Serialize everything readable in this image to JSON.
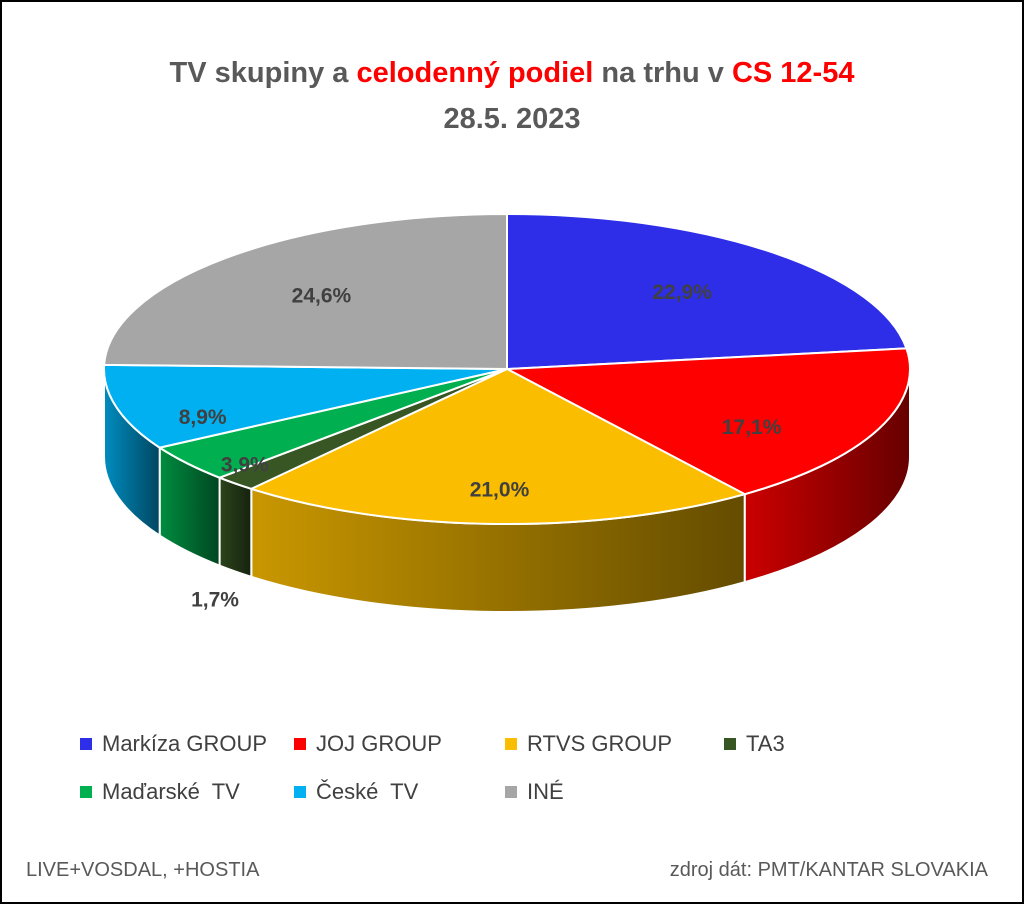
{
  "title": {
    "part1": "TV skupiny a ",
    "part2": "celodenný podiel",
    "part3": " na trhu v ",
    "part4": "CS 12-54",
    "line2": "28.5. 2023"
  },
  "footer": {
    "left": "LIVE+VOSDAL, +HOSTIA",
    "right": "zdroj dát: PMT/KANTAR SLOVAKIA"
  },
  "chart_data": {
    "type": "pie",
    "style": "3d",
    "title": "TV skupiny a celodenný podiel na trhu v CS 12-54 28.5. 2023",
    "legend_position": "bottom",
    "slices": [
      {
        "name": "Markíza GROUP",
        "value": 22.9,
        "label": "22,9%",
        "color": "#2e2ee8"
      },
      {
        "name": "JOJ GROUP",
        "value": 17.1,
        "label": "17,1%",
        "color": "#ff0000"
      },
      {
        "name": "RTVS GROUP",
        "value": 21.0,
        "label": "21,0%",
        "color": "#fbbd00"
      },
      {
        "name": "TA3",
        "value": 1.7,
        "label": "1,7%",
        "color": "#375623"
      },
      {
        "name": "Maďarské  TV",
        "value": 3.9,
        "label": "3,9%",
        "color": "#00b050"
      },
      {
        "name": "České  TV",
        "value": 8.9,
        "label": "8,9%",
        "color": "#00b0f0"
      },
      {
        "name": "INÉ",
        "value": 24.6,
        "label": "24,6%",
        "color": "#a6a6a6"
      }
    ]
  }
}
